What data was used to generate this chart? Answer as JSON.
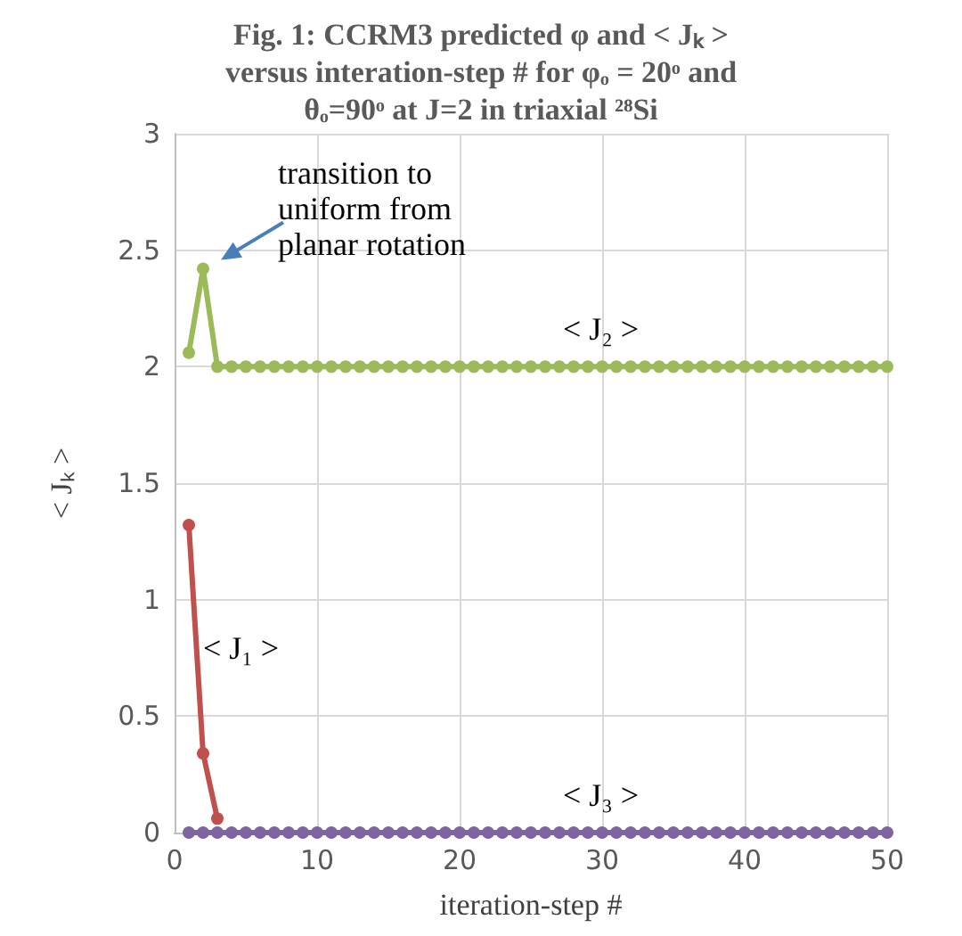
{
  "chart_data": {
    "type": "line",
    "title": "Fig. 1: CCRM3 predicted φ and < Jₖ >\nversus interation-step # for φₒ = 20ᵒ and\nθₒ=90ᵒ at J=2 in triaxial ²⁸Si",
    "xlabel": "iteration-step #",
    "ylabel": "< Jₖ >",
    "x": [
      1,
      2,
      3,
      4,
      5,
      6,
      7,
      8,
      9,
      10,
      11,
      12,
      13,
      14,
      15,
      16,
      17,
      18,
      19,
      20,
      21,
      22,
      23,
      24,
      25,
      26,
      27,
      28,
      29,
      30,
      31,
      32,
      33,
      34,
      35,
      36,
      37,
      38,
      39,
      40,
      41,
      42,
      43,
      44,
      45,
      46,
      47,
      48,
      49,
      50
    ],
    "series": [
      {
        "name": "< J₂ >",
        "color": "#9bbb59",
        "values": [
          2.06,
          2.42,
          2,
          2,
          2,
          2,
          2,
          2,
          2,
          2,
          2,
          2,
          2,
          2,
          2,
          2,
          2,
          2,
          2,
          2,
          2,
          2,
          2,
          2,
          2,
          2,
          2,
          2,
          2,
          2,
          2,
          2,
          2,
          2,
          2,
          2,
          2,
          2,
          2,
          2,
          2,
          2,
          2,
          2,
          2,
          2,
          2,
          2,
          2,
          2
        ]
      },
      {
        "name": "< J₁ >",
        "color": "#c0504d",
        "values": [
          1.32,
          0.34,
          0.06,
          null,
          null,
          null,
          null,
          null,
          null,
          null,
          null,
          null,
          null,
          null,
          null,
          null,
          null,
          null,
          null,
          null,
          null,
          null,
          null,
          null,
          null,
          null,
          null,
          null,
          null,
          null,
          null,
          null,
          null,
          null,
          null,
          null,
          null,
          null,
          null,
          null,
          null,
          null,
          null,
          null,
          null,
          null,
          null,
          null,
          null,
          null
        ]
      },
      {
        "name": "< J₃ >",
        "color": "#8064a2",
        "values": [
          0,
          0,
          0,
          0,
          0,
          0,
          0,
          0,
          0,
          0,
          0,
          0,
          0,
          0,
          0,
          0,
          0,
          0,
          0,
          0,
          0,
          0,
          0,
          0,
          0,
          0,
          0,
          0,
          0,
          0,
          0,
          0,
          0,
          0,
          0,
          0,
          0,
          0,
          0,
          0,
          0,
          0,
          0,
          0,
          0,
          0,
          0,
          0,
          0,
          0
        ]
      }
    ],
    "annotations": [
      {
        "text": "transition to\nuniform from\nplanar rotation",
        "x": 2,
        "y": 2.42
      }
    ],
    "xlim": [
      0,
      50
    ],
    "xticks": [
      0,
      10,
      20,
      30,
      40,
      50
    ],
    "ylim": [
      0,
      3
    ],
    "yticks": [
      0,
      0.5,
      1,
      1.5,
      2,
      2.5,
      3
    ],
    "grid": true,
    "marker": "circle",
    "line_style": "solid"
  }
}
